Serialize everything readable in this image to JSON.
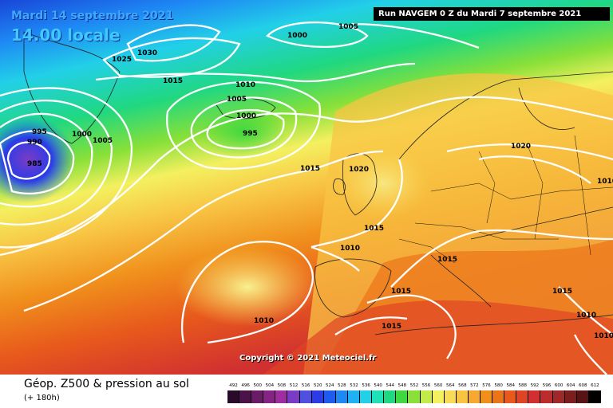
{
  "header": {
    "date": "Mardi 14 septembre 2021",
    "time": "14.00 locale",
    "run": "Run NAVGEM 0 Z du Mardi 7 septembre 2021",
    "copyright": "Copyright © 2021 Meteociel.fr"
  },
  "footer": {
    "parameter": "Géop. Z500 & pression au sol",
    "lead": "(+ 180h)"
  },
  "isobar_labels": [
    "1000",
    "1005",
    "1030",
    "1025",
    "1015",
    "1010",
    "1005",
    "1000",
    "995",
    "995",
    "990",
    "1000",
    "1005",
    "985",
    "1015",
    "1020",
    "1020",
    "1015",
    "1010",
    "1015",
    "1015",
    "1010",
    "1015",
    "1010",
    "1010",
    "1015",
    "1010"
  ],
  "legend": {
    "ticks": [
      "492",
      "496",
      "500",
      "504",
      "508",
      "512",
      "516",
      "520",
      "524",
      "528",
      "532",
      "536",
      "540",
      "544",
      "548",
      "552",
      "556",
      "560",
      "564",
      "568",
      "572",
      "576",
      "580",
      "584",
      "588",
      "592",
      "596",
      "600",
      "604",
      "608",
      "612"
    ],
    "colors": [
      "#2a0a2a",
      "#4a1448",
      "#6a1c66",
      "#862484",
      "#a02ca2",
      "#7a3cc4",
      "#5050e0",
      "#2a3ce8",
      "#1e5cf0",
      "#1e88f4",
      "#22b0f4",
      "#22d0e8",
      "#20e0b8",
      "#20d880",
      "#40d840",
      "#88e038",
      "#c4ec48",
      "#f4f060",
      "#f8dc58",
      "#f8c444",
      "#f8a830",
      "#f0901c",
      "#ec7418",
      "#e85a1c",
      "#e04424",
      "#d03030",
      "#bc2c2c",
      "#a02828",
      "#7c1e1e",
      "#581414",
      "#000000"
    ]
  }
}
